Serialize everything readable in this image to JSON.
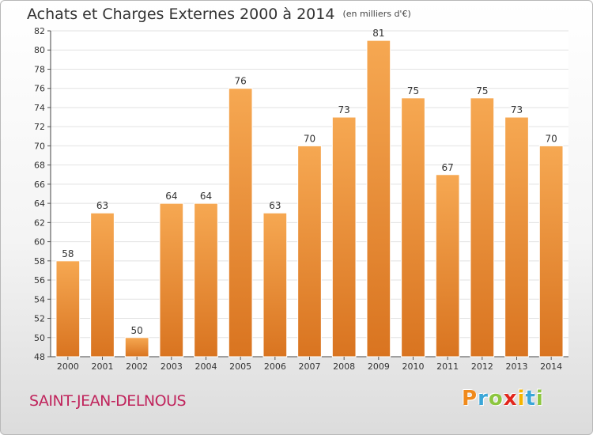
{
  "chart_data": {
    "type": "bar",
    "title": "Achats et Charges Externes 2000 à 2014",
    "subtitle": "(en milliers d'€)",
    "categories": [
      "2000",
      "2001",
      "2002",
      "2003",
      "2004",
      "2005",
      "2006",
      "2007",
      "2008",
      "2009",
      "2010",
      "2011",
      "2012",
      "2013",
      "2014"
    ],
    "values": [
      58,
      63,
      50,
      64,
      64,
      76,
      63,
      70,
      73,
      81,
      75,
      67,
      75,
      73,
      70
    ],
    "ylim": [
      48,
      82
    ],
    "yticks": [
      48,
      50,
      52,
      54,
      56,
      58,
      60,
      62,
      64,
      66,
      68,
      70,
      72,
      74,
      76,
      78,
      80,
      82
    ],
    "grid": true,
    "xlabel": "",
    "ylabel": "",
    "bar_color_top": "#f6a852",
    "bar_color_bottom": "#d97420"
  },
  "location": "SAINT-JEAN-DELNOUS",
  "logo": {
    "letters": [
      "P",
      "r",
      "o",
      "x",
      "i",
      "t",
      "i"
    ],
    "colors": [
      "#f08a1c",
      "#3aa6d8",
      "#8cc63f",
      "#e2261c",
      "#f5b400",
      "#3aa6d8",
      "#8cc63f"
    ]
  }
}
